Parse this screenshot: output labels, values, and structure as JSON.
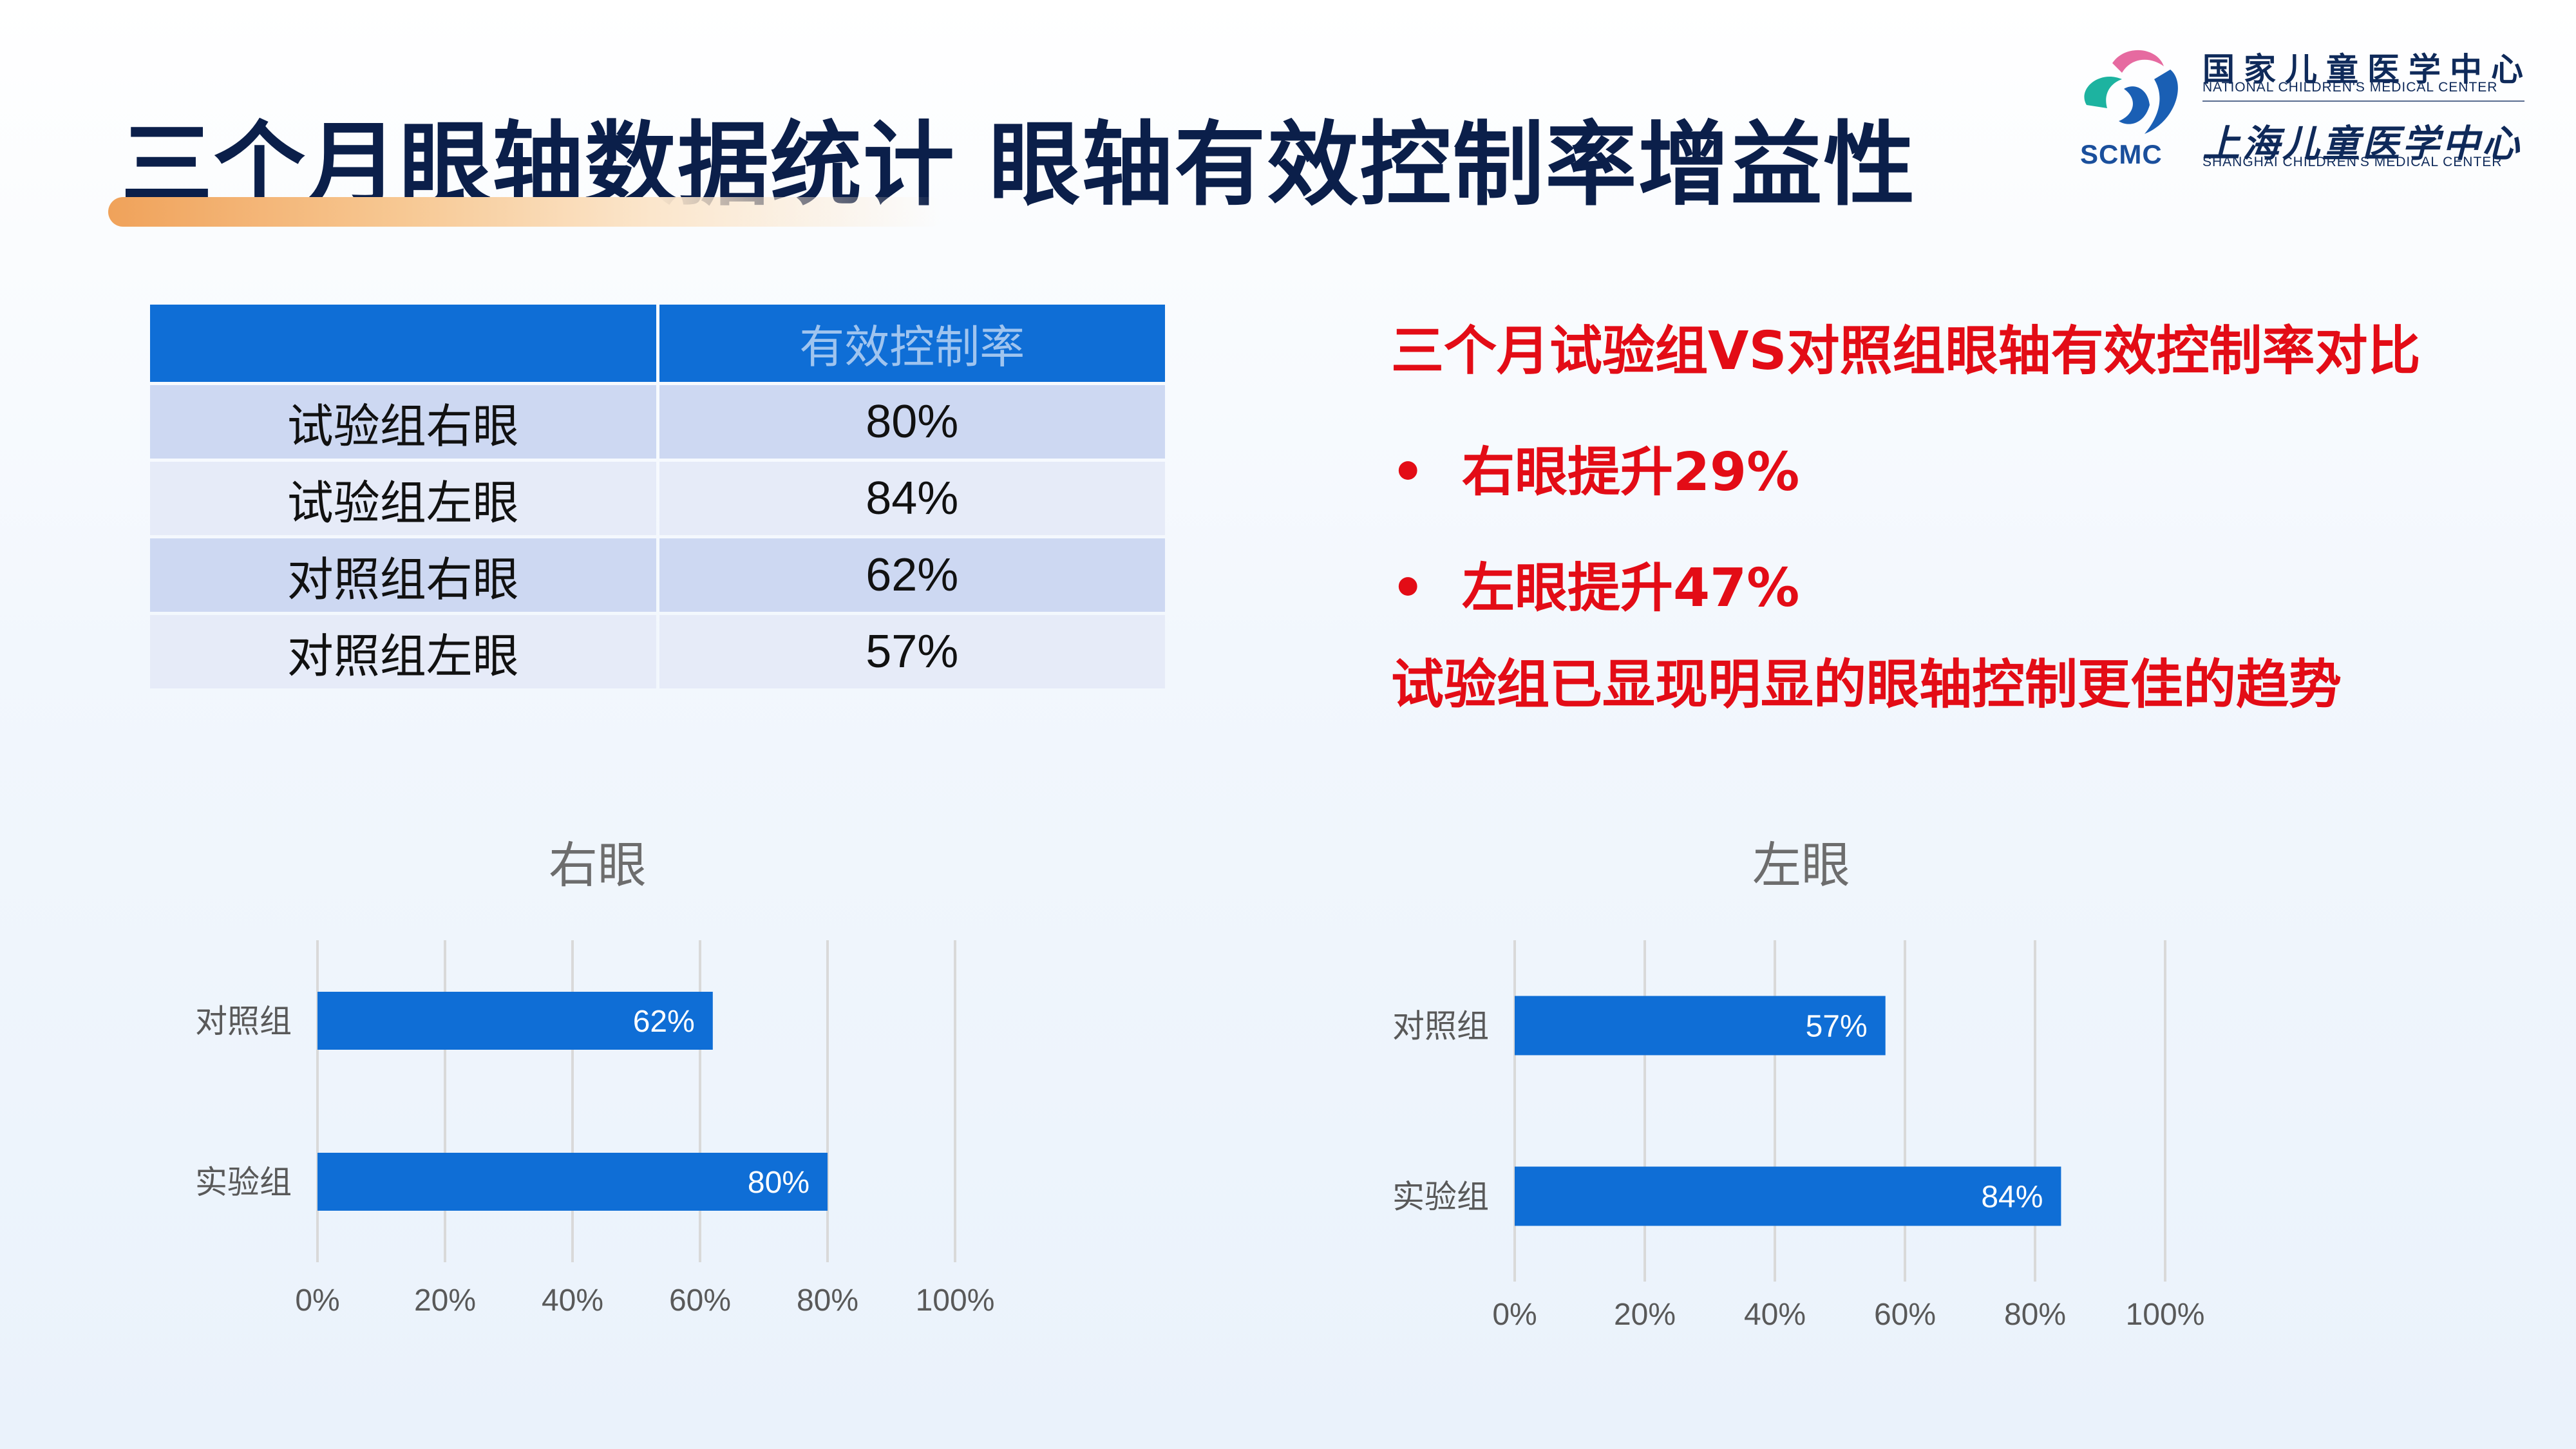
{
  "header": {
    "title": "三个月眼轴数据统计  眼轴有效控制率增益性"
  },
  "logo": {
    "abbr": "SCMC",
    "cn_line1": "国家儿童医学中心",
    "en_line1": "NATIONAL CHILDREN'S MEDICAL CENTER",
    "cn_line2": "上海儿童医学中心",
    "en_line2": "SHANGHAI CHILDREN'S MEDICAL CENTER",
    "colors": {
      "teal": "#1db3a0",
      "pink": "#e66aa0",
      "blue": "#1a5fb4"
    }
  },
  "table": {
    "headers": [
      "",
      "有效控制率"
    ],
    "rows": [
      {
        "label": "试验组右眼",
        "value": "80%"
      },
      {
        "label": "试验组左眼",
        "value": "84%"
      },
      {
        "label": "对照组右眼",
        "value": "62%"
      },
      {
        "label": "对照组左眼",
        "value": "57%"
      }
    ]
  },
  "comparison": {
    "title": "三个月试验组VS对照组眼轴有效控制率对比",
    "bullet_symbol": "•",
    "bullets": [
      "右眼提升29%",
      "左眼提升47%"
    ],
    "conclusion": "试验组已显现明显的眼轴控制更佳的趋势",
    "color": "#e30c16"
  },
  "chart_data": [
    {
      "type": "bar",
      "orientation": "horizontal",
      "title": "右眼",
      "categories": [
        "对照组",
        "实验组"
      ],
      "values": [
        62,
        80
      ],
      "data_labels": [
        "62%",
        "80%"
      ],
      "xlim": [
        0,
        100
      ],
      "ticks": [
        "0%",
        "20%",
        "40%",
        "60%",
        "80%",
        "100%"
      ],
      "grid": true,
      "bar_color": "#0f6ed6"
    },
    {
      "type": "bar",
      "orientation": "horizontal",
      "title": "左眼",
      "categories": [
        "对照组",
        "实验组"
      ],
      "values": [
        57,
        84
      ],
      "data_labels": [
        "57%",
        "84%"
      ],
      "xlim": [
        0,
        100
      ],
      "ticks": [
        "0%",
        "20%",
        "40%",
        "60%",
        "80%",
        "100%"
      ],
      "grid": true,
      "bar_color": "#0f6ed6"
    }
  ]
}
